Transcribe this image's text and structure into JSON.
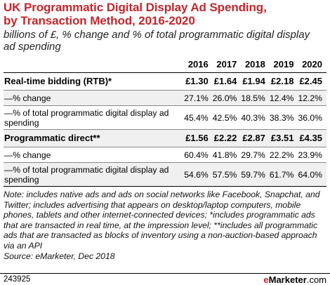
{
  "title": "UK Programmatic Digital Display Ad Spending, by Transaction Method, 2016-2020",
  "subtitle": "billions of £, % change and % of total programmatic digital display ad spending",
  "chart_data": {
    "type": "table",
    "columns": [
      "2016",
      "2017",
      "2018",
      "2019",
      "2020"
    ],
    "rows": [
      {
        "label": "Real-time bidding (RTB)*",
        "cells": [
          "£1.30",
          "£1.64",
          "£1.94",
          "£2.18",
          "£2.45"
        ]
      },
      {
        "label": "—% change",
        "cells": [
          "27.1%",
          "26.0%",
          "18.5%",
          "12.4%",
          "12.2%"
        ]
      },
      {
        "label": "—% of total programmatic digital display ad spending",
        "cells": [
          "45.4%",
          "42.5%",
          "40.3%",
          "38.3%",
          "36.0%"
        ]
      },
      {
        "label": "Programmatic direct**",
        "cells": [
          "£1.56",
          "£2.22",
          "£2.87",
          "£3.51",
          "£4.35"
        ]
      },
      {
        "label": "—% change",
        "cells": [
          "60.4%",
          "41.8%",
          "29.7%",
          "22.2%",
          "23.9%"
        ]
      },
      {
        "label": "—% of total programmatic digital display ad spending",
        "cells": [
          "54.6%",
          "57.5%",
          "59.7%",
          "61.7%",
          "64.0%"
        ]
      }
    ]
  },
  "note": "Note: includes native ads and ads on social networks like Facebook, Snapchat, and Twitter; includes advertising that appears on desktop/laptop computers, mobile phones, tablets and other internet-connected devices; *includes programmatic ads that are transacted in real time, at the impression level; **includes all programmatic ads that are transacted as blocks of inventory using a non-auction-based approach via an API",
  "source": "Source: eMarketer, Dec 2018",
  "footer": {
    "id": "243925",
    "brand_e": "e",
    "brand_name": "Marketer",
    "brand_domain": ".com"
  },
  "colors": {
    "title": "#c1272d",
    "brand_accent": "#c1272d",
    "row_shade": "#f0f0f0"
  }
}
